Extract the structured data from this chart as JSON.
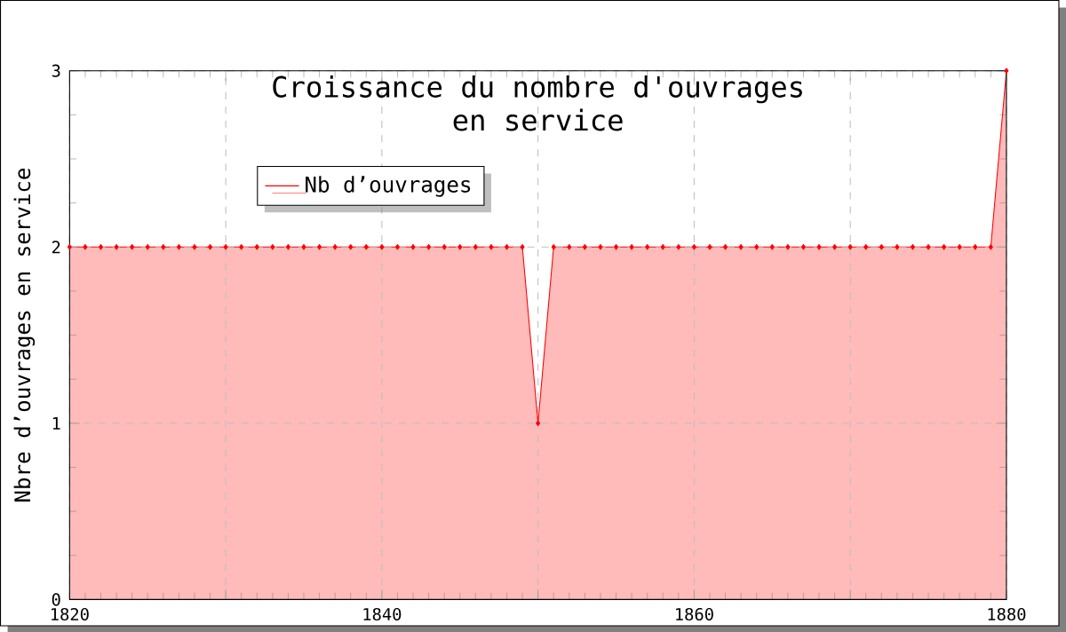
{
  "chart_data": {
    "type": "area",
    "title": "Croissance du nombre d'ouvrages\nen service",
    "ylabel": "Nbre d’ouvrages en service",
    "x": [
      1820,
      1821,
      1822,
      1823,
      1824,
      1825,
      1826,
      1827,
      1828,
      1829,
      1830,
      1831,
      1832,
      1833,
      1834,
      1835,
      1836,
      1837,
      1838,
      1839,
      1840,
      1841,
      1842,
      1843,
      1844,
      1845,
      1846,
      1847,
      1848,
      1849,
      1850,
      1851,
      1852,
      1853,
      1854,
      1855,
      1856,
      1857,
      1858,
      1859,
      1860,
      1861,
      1862,
      1863,
      1864,
      1865,
      1866,
      1867,
      1868,
      1869,
      1870,
      1871,
      1872,
      1873,
      1874,
      1875,
      1876,
      1877,
      1878,
      1879,
      1880
    ],
    "series": [
      {
        "name": "Nb d’ouvrages",
        "color": "#ff0000",
        "values": [
          2,
          2,
          2,
          2,
          2,
          2,
          2,
          2,
          2,
          2,
          2,
          2,
          2,
          2,
          2,
          2,
          2,
          2,
          2,
          2,
          2,
          2,
          2,
          2,
          2,
          2,
          2,
          2,
          2,
          2,
          1,
          2,
          2,
          2,
          2,
          2,
          2,
          2,
          2,
          2,
          2,
          2,
          2,
          2,
          2,
          2,
          2,
          2,
          2,
          2,
          2,
          2,
          2,
          2,
          2,
          2,
          2,
          2,
          2,
          2,
          3
        ]
      }
    ],
    "xlim": [
      1820,
      1880
    ],
    "ylim": [
      0,
      3
    ],
    "xticks": [
      1820,
      {
        "value": 1830,
        "label": null
      },
      1840,
      {
        "value": 1850,
        "label": null
      },
      1860,
      {
        "value": 1870,
        "label": null
      },
      1880
    ],
    "yticks": [
      0,
      1,
      2,
      3
    ],
    "grid": true,
    "legend": "top left",
    "marker": "diamond",
    "line_style": "solid"
  }
}
